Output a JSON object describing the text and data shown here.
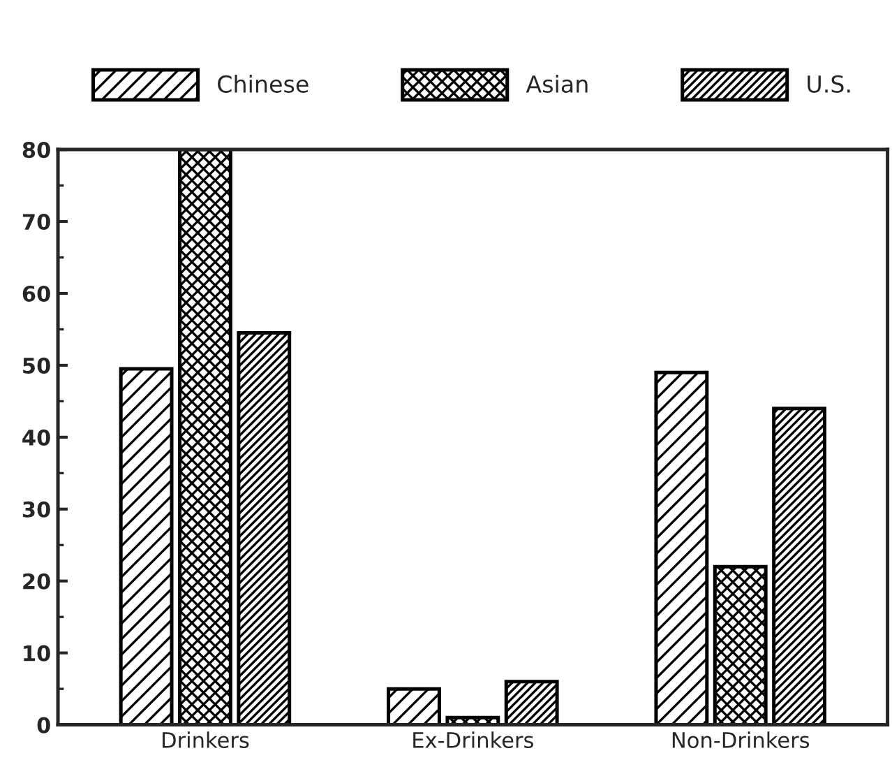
{
  "chart_data": {
    "type": "bar",
    "categories": [
      "Drinkers",
      "Ex-Drinkers",
      "Non-Drinkers"
    ],
    "series": [
      {
        "name": "Chinese",
        "color": "#000000",
        "values": [
          49.5,
          5,
          49
        ]
      },
      {
        "name": "Asian",
        "color": "#000000",
        "values": [
          80,
          1,
          22
        ]
      },
      {
        "name": "U.S.",
        "color": "#000000",
        "values": [
          54.5,
          6,
          44
        ]
      }
    ],
    "ylim": [
      0,
      80
    ],
    "yticks": [
      0,
      10,
      20,
      30,
      40,
      50,
      60,
      70,
      80
    ],
    "grid": false,
    "legend": "top"
  }
}
